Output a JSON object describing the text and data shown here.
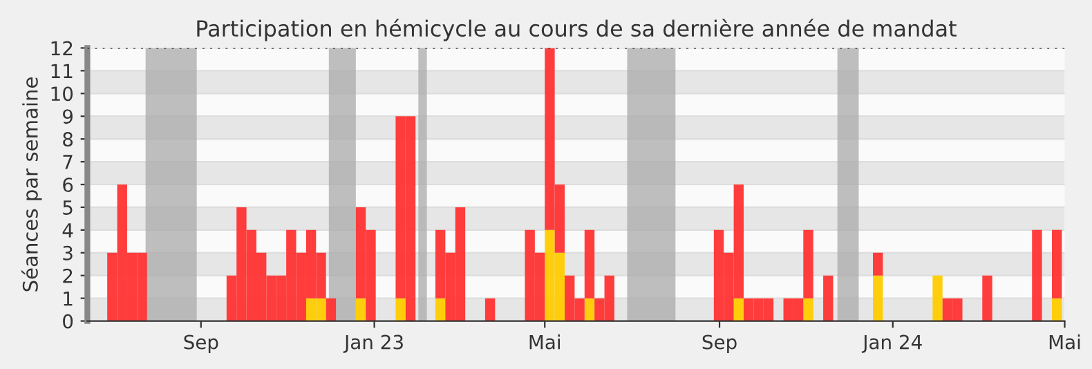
{
  "chart_data": {
    "type": "bar",
    "title": "Participation en hémicycle au cours de sa dernière année de mandat",
    "ylabel": "Séances par semaine",
    "stacked": true,
    "x": [
      "2022-06-27",
      "2022-07-04",
      "2022-07-11",
      "2022-07-18",
      "2022-09-19",
      "2022-09-26",
      "2022-10-03",
      "2022-10-10",
      "2022-10-17",
      "2022-10-24",
      "2022-10-31",
      "2022-11-07",
      "2022-11-14",
      "2022-11-21",
      "2022-11-28",
      "2022-12-19",
      "2022-12-26",
      "2023-01-16",
      "2023-01-23",
      "2023-02-13",
      "2023-02-20",
      "2023-02-27",
      "2023-03-20",
      "2023-04-17",
      "2023-04-24",
      "2023-05-01",
      "2023-05-08",
      "2023-05-15",
      "2023-05-22",
      "2023-05-29",
      "2023-06-05",
      "2023-06-12",
      "2023-08-28",
      "2023-09-04",
      "2023-09-11",
      "2023-09-18",
      "2023-09-25",
      "2023-10-02",
      "2023-10-16",
      "2023-10-23",
      "2023-10-30",
      "2023-11-13",
      "2023-12-18",
      "2024-01-29",
      "2024-02-05",
      "2024-02-12",
      "2024-03-04",
      "2024-04-08",
      "2024-04-22"
    ],
    "series": [
      {
        "color": "#ffcc00",
        "values": [
          null,
          null,
          null,
          null,
          null,
          null,
          null,
          null,
          null,
          null,
          null,
          null,
          1,
          1,
          null,
          1,
          null,
          1,
          null,
          1,
          null,
          null,
          null,
          null,
          null,
          4,
          3,
          null,
          null,
          1,
          null,
          null,
          null,
          null,
          1,
          null,
          null,
          null,
          null,
          null,
          1,
          null,
          2,
          2,
          null,
          null,
          null,
          null,
          1
        ]
      },
      {
        "color": "#ff3333",
        "values": [
          3,
          6,
          3,
          3,
          2,
          5,
          4,
          3,
          2,
          2,
          4,
          3,
          3,
          2,
          1,
          4,
          4,
          8,
          9,
          3,
          3,
          5,
          1,
          4,
          3,
          8,
          3,
          2,
          1,
          3,
          1,
          2,
          4,
          3,
          5,
          1,
          1,
          1,
          1,
          1,
          3,
          2,
          1,
          null,
          1,
          1,
          2,
          4,
          3
        ]
      }
    ],
    "xlim": [
      "2022-06-13",
      "2024-05-01"
    ],
    "xticks": [
      {
        "value": "2022-09-01",
        "label": "Sep"
      },
      {
        "value": "2023-01-01",
        "label": "Jan 23"
      },
      {
        "value": "2023-05-01",
        "label": "Mai"
      },
      {
        "value": "2023-09-01",
        "label": "Sep"
      },
      {
        "value": "2024-01-01",
        "label": "Jan 24"
      },
      {
        "value": "2024-05-01",
        "label": "Mai"
      }
    ],
    "ylim": [
      0,
      12
    ],
    "yticks": [
      0,
      1,
      2,
      3,
      4,
      5,
      6,
      7,
      8,
      9,
      10,
      11,
      12
    ],
    "grid": "y",
    "bands": [
      {
        "axis": "x",
        "from": "2022-07-24",
        "to": "2022-08-29",
        "color": "#aaaaaa"
      },
      {
        "axis": "x",
        "from": "2022-11-30",
        "to": "2022-12-19",
        "color": "#aaaaaa"
      },
      {
        "axis": "x",
        "from": "2023-02-01",
        "to": "2023-02-07",
        "color": "#aaaaaa"
      },
      {
        "axis": "x",
        "from": "2023-06-28",
        "to": "2023-08-01",
        "color": "#aaaaaa"
      },
      {
        "axis": "x",
        "from": "2023-11-23",
        "to": "2023-12-08",
        "color": "#aaaaaa"
      }
    ]
  }
}
